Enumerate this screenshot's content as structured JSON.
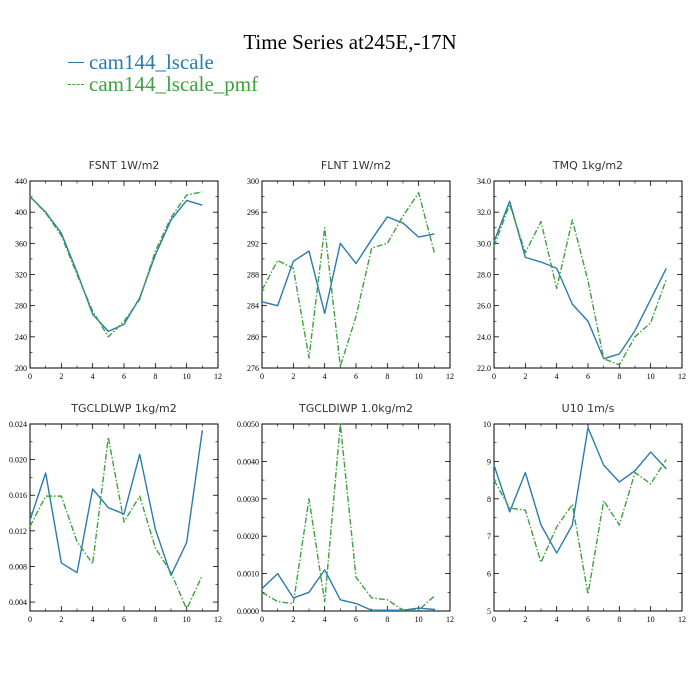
{
  "title": "Time Series at245E,-17N",
  "colors": {
    "cam144_lscale": "#2a7bb0",
    "cam144_lscale_pmf": "#3ca23c"
  },
  "legend": [
    {
      "name": "cam144_lscale",
      "style": "solid"
    },
    {
      "name": "cam144_lscale_pmf",
      "style": "dashed"
    }
  ],
  "chart_data": [
    {
      "type": "line",
      "title": "FSNT  1W/m2",
      "x": [
        0,
        1,
        2,
        3,
        4,
        5,
        6,
        7,
        8,
        9,
        10,
        11
      ],
      "xlim": [
        0,
        12
      ],
      "xticks": [
        "0",
        "2",
        "4",
        "6",
        "8",
        "10",
        "12"
      ],
      "ylim": [
        200,
        440
      ],
      "yticks": [
        "200",
        "240",
        "280",
        "320",
        "360",
        "400",
        "440"
      ],
      "series": [
        {
          "name": "cam144_lscale",
          "values": [
            420,
            400,
            373,
            323,
            269,
            247,
            256,
            290,
            345,
            390,
            415,
            409
          ]
        },
        {
          "name": "cam144_lscale_pmf",
          "values": [
            420,
            399,
            370,
            320,
            273,
            240,
            260,
            288,
            350,
            393,
            422,
            426
          ]
        }
      ]
    },
    {
      "type": "line",
      "title": "FLNT  1W/m2",
      "x": [
        0,
        1,
        2,
        3,
        4,
        5,
        6,
        7,
        8,
        9,
        10,
        11
      ],
      "xlim": [
        0,
        12
      ],
      "xticks": [
        "0",
        "2",
        "4",
        "6",
        "8",
        "10",
        "12"
      ],
      "ylim": [
        276,
        300
      ],
      "yticks": [
        "276",
        "280",
        "284",
        "288",
        "292",
        "296",
        "300"
      ],
      "series": [
        {
          "name": "cam144_lscale",
          "values": [
            284.5,
            284,
            289.7,
            291,
            283,
            292,
            289.4,
            292.5,
            295.4,
            294.6,
            292.8,
            293.2
          ]
        },
        {
          "name": "cam144_lscale_pmf",
          "values": [
            286,
            289.8,
            288.8,
            277.3,
            294,
            276.2,
            282.6,
            291.4,
            292,
            295.5,
            298.5,
            290.8
          ]
        }
      ]
    },
    {
      "type": "line",
      "title": "TMQ  1kg/m2",
      "x": [
        0,
        1,
        2,
        3,
        4,
        5,
        6,
        7,
        8,
        9,
        10,
        11
      ],
      "xlim": [
        0,
        12
      ],
      "xticks": [
        "0",
        "2",
        "4",
        "6",
        "8",
        "10",
        "12"
      ],
      "ylim": [
        22,
        34
      ],
      "yticks": [
        "22.0",
        "24.0",
        "26.0",
        "28.0",
        "30.0",
        "32.0",
        "34.0"
      ],
      "series": [
        {
          "name": "cam144_lscale",
          "values": [
            30.1,
            32.7,
            29.1,
            28.8,
            28.4,
            26.1,
            25.0,
            22.6,
            22.9,
            24.4,
            26.4,
            28.4
          ]
        },
        {
          "name": "cam144_lscale_pmf",
          "values": [
            29.8,
            32.5,
            29.4,
            31.4,
            27.1,
            31.5,
            27.6,
            22.6,
            22.2,
            24.0,
            24.9,
            27.7
          ]
        }
      ]
    },
    {
      "type": "line",
      "title": "TGCLDLWP  1kg/m2",
      "x": [
        0,
        1,
        2,
        3,
        4,
        5,
        6,
        7,
        8,
        9,
        10,
        11
      ],
      "xlim": [
        0,
        12
      ],
      "xticks": [
        "0",
        "2",
        "4",
        "6",
        "8",
        "10",
        "12"
      ],
      "ylim": [
        0.003,
        0.024
      ],
      "yticks": [
        "0.004",
        "0.008",
        "0.012",
        "0.016",
        "0.020",
        "0.024"
      ],
      "series": [
        {
          "name": "cam144_lscale",
          "values": [
            0.0132,
            0.0185,
            0.0084,
            0.0073,
            0.0167,
            0.0146,
            0.0139,
            0.0206,
            0.0122,
            0.007,
            0.0107,
            0.0233
          ]
        },
        {
          "name": "cam144_lscale_pmf",
          "values": [
            0.0125,
            0.0159,
            0.0159,
            0.0108,
            0.0083,
            0.0225,
            0.013,
            0.0159,
            0.0101,
            0.0073,
            0.0032,
            0.007
          ]
        }
      ]
    },
    {
      "type": "line",
      "title": "TGCLDIWP  1.0kg/m2",
      "x": [
        0,
        1,
        2,
        3,
        4,
        5,
        6,
        7,
        8,
        9,
        10,
        11
      ],
      "xlim": [
        0,
        12
      ],
      "xticks": [
        "0",
        "2",
        "4",
        "6",
        "8",
        "10",
        "12"
      ],
      "ylim": [
        0,
        0.005
      ],
      "yticks": [
        "0.0000",
        "0.0010",
        "0.0020",
        "0.0030",
        "0.0040",
        "0.0050"
      ],
      "series": [
        {
          "name": "cam144_lscale",
          "values": [
            0.0006,
            0.001,
            0.00035,
            0.0005,
            0.0011,
            0.0003,
            0.0002,
            2e-05,
            2e-05,
            2e-05,
            8e-05,
            4e-05
          ]
        },
        {
          "name": "cam144_lscale_pmf",
          "values": [
            0.0005,
            0.00025,
            0.0002,
            0.003,
            0.00025,
            0.005,
            0.0009,
            0.00035,
            0.0003,
            2e-05,
            2e-05,
            0.0004
          ]
        }
      ]
    },
    {
      "type": "line",
      "title": "U10  1m/s",
      "x": [
        0,
        1,
        2,
        3,
        4,
        5,
        6,
        7,
        8,
        9,
        10,
        11
      ],
      "xlim": [
        0,
        12
      ],
      "xticks": [
        "0",
        "2",
        "4",
        "6",
        "8",
        "10",
        "12"
      ],
      "ylim": [
        5,
        10
      ],
      "yticks": [
        "5",
        "6",
        "7",
        "8",
        "9",
        "10"
      ],
      "series": [
        {
          "name": "cam144_lscale",
          "values": [
            8.9,
            7.65,
            8.7,
            7.3,
            6.55,
            7.3,
            9.9,
            8.9,
            8.45,
            8.75,
            9.25,
            8.8
          ]
        },
        {
          "name": "cam144_lscale_pmf",
          "values": [
            8.5,
            7.75,
            7.7,
            6.3,
            7.25,
            7.85,
            5.45,
            7.95,
            7.3,
            8.7,
            8.4,
            9.05
          ]
        }
      ]
    }
  ]
}
